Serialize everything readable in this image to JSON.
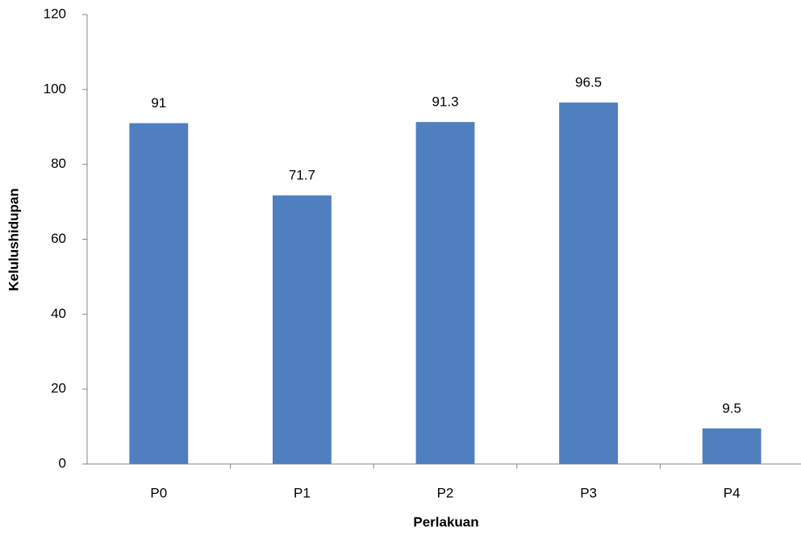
{
  "chart_data": {
    "type": "bar",
    "x_label": "Perlakuan",
    "y_label": "Kelulushidupan",
    "categories": [
      "P0",
      "P1",
      "P2",
      "P3",
      "P4"
    ],
    "values": [
      91,
      71.7,
      91.3,
      96.5,
      9.5
    ],
    "color": "#4f7fbf",
    "ylim": [
      0,
      120
    ],
    "yticks": [
      0,
      20,
      40,
      60,
      80,
      100,
      120
    ],
    "grid": false
  }
}
